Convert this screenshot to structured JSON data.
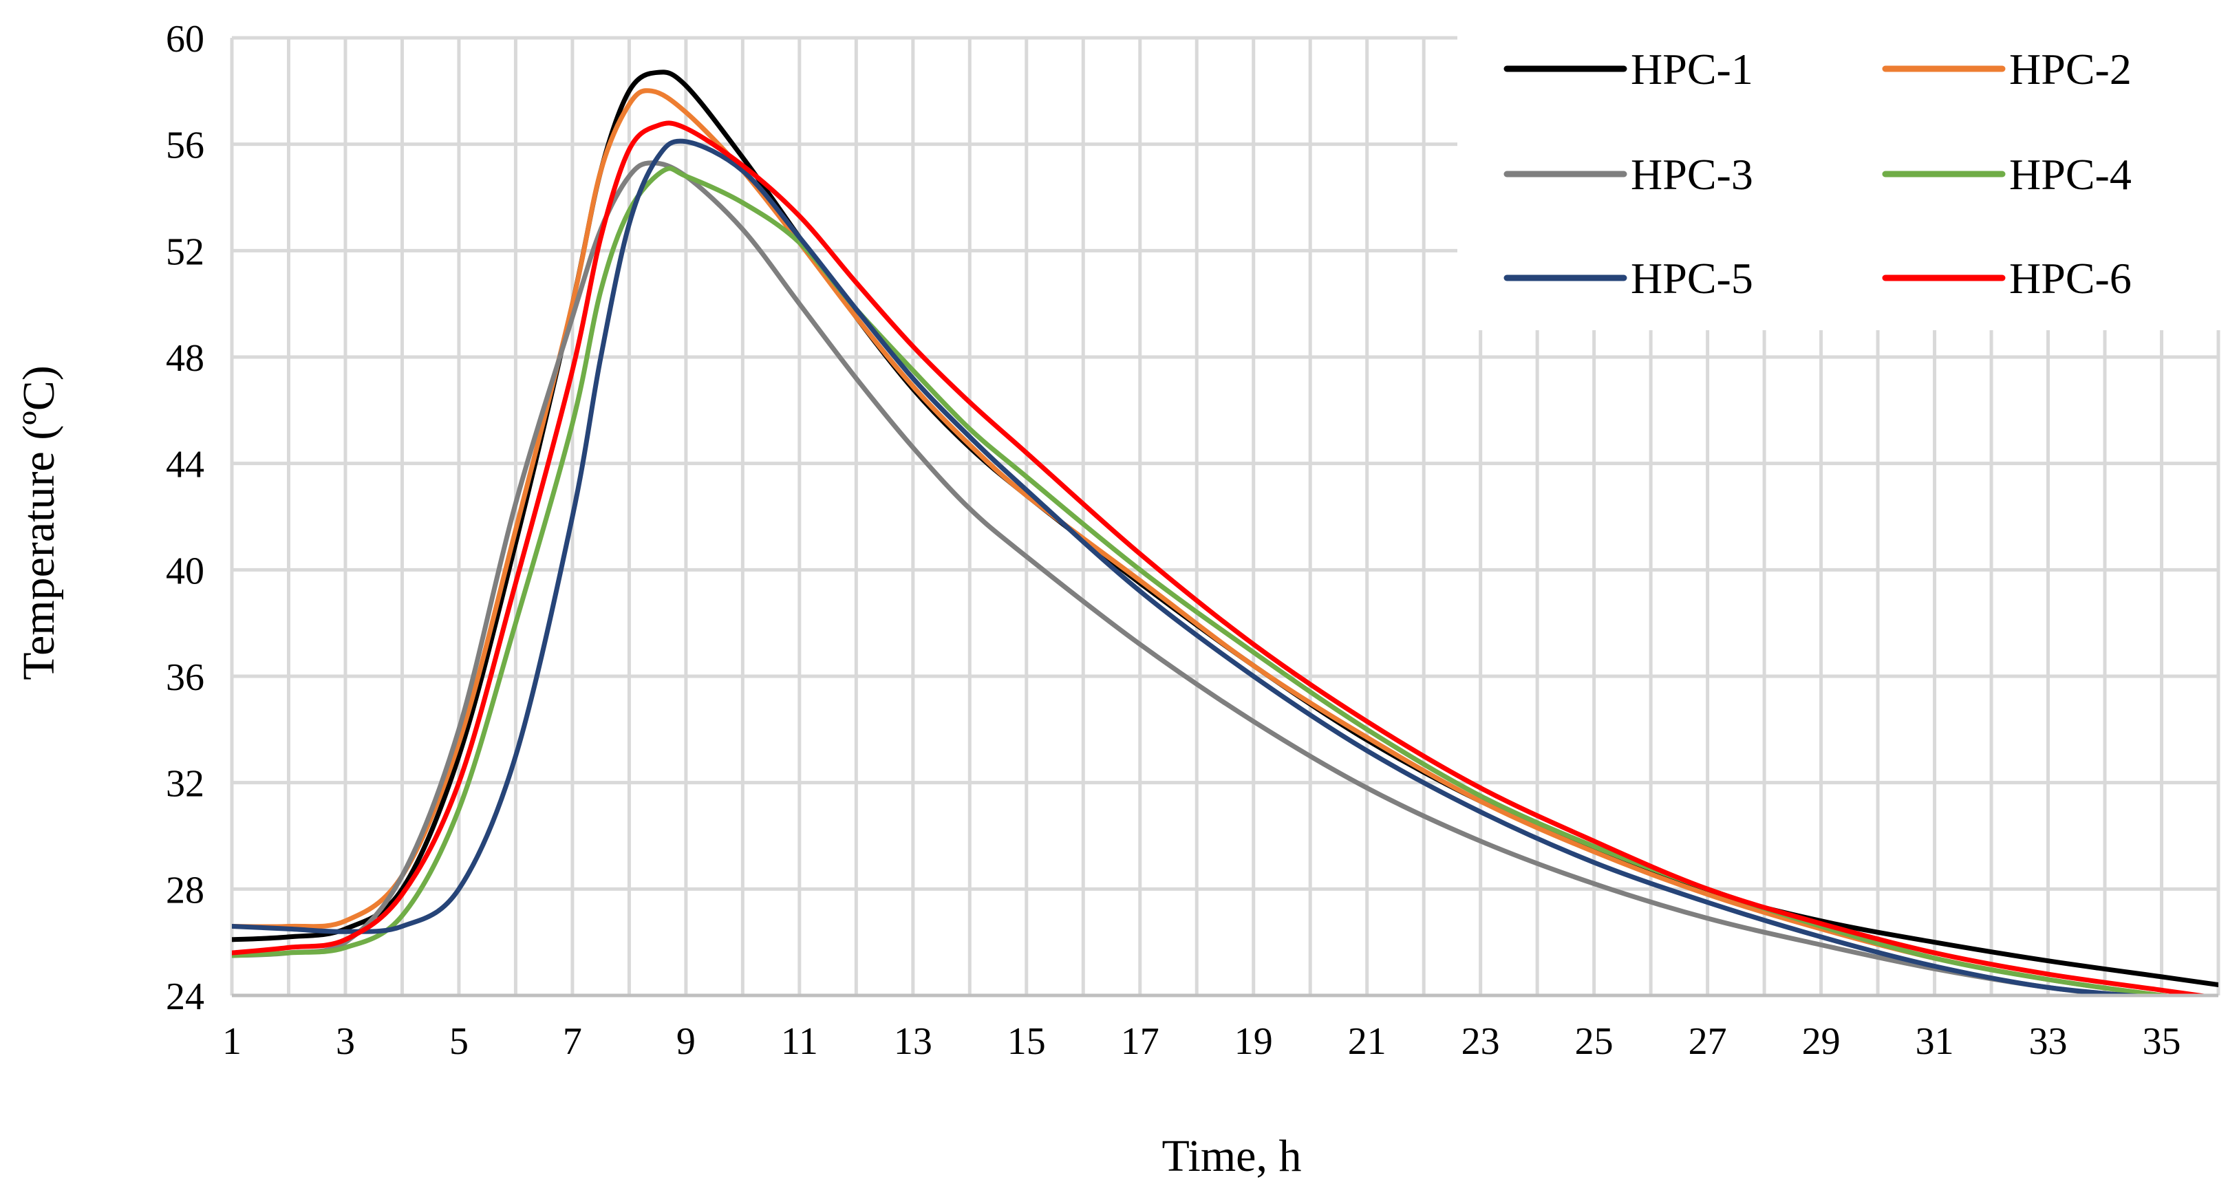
{
  "chart_data": {
    "type": "line",
    "title": "",
    "xlabel": "Time, h",
    "ylabel": "Temperature (ºC)",
    "xlim": [
      1,
      36
    ],
    "ylim": [
      24,
      60
    ],
    "x_tick_labels": [
      "1",
      "3",
      "5",
      "7",
      "9",
      "11",
      "13",
      "15",
      "17",
      "19",
      "21",
      "23",
      "25",
      "27",
      "29",
      "31",
      "33",
      "35"
    ],
    "y_tick_labels": [
      "24",
      "28",
      "32",
      "36",
      "40",
      "44",
      "48",
      "52",
      "56",
      "60"
    ],
    "grid": true,
    "legend_position": "top-right",
    "series": [
      {
        "name": "HPC-1",
        "color": "#000000",
        "points": [
          [
            1,
            26.1
          ],
          [
            2,
            26.2
          ],
          [
            3,
            26.5
          ],
          [
            4,
            28.0
          ],
          [
            5,
            33.0
          ],
          [
            6,
            41.0
          ],
          [
            7,
            50.0
          ],
          [
            7.5,
            55.0
          ],
          [
            8,
            58.0
          ],
          [
            8.5,
            58.7
          ],
          [
            9,
            58.2
          ],
          [
            10,
            55.5
          ],
          [
            11,
            52.5
          ],
          [
            12,
            49.5
          ],
          [
            13,
            46.8
          ],
          [
            14,
            44.6
          ],
          [
            15,
            42.8
          ],
          [
            17,
            39.5
          ],
          [
            19,
            36.4
          ],
          [
            21,
            33.6
          ],
          [
            23,
            31.3
          ],
          [
            25,
            29.5
          ],
          [
            27,
            27.9
          ],
          [
            29,
            26.8
          ],
          [
            31,
            26.0
          ],
          [
            33,
            25.3
          ],
          [
            35,
            24.7
          ],
          [
            36,
            24.4
          ]
        ]
      },
      {
        "name": "HPC-2",
        "color": "#ED7D31",
        "points": [
          [
            1,
            26.6
          ],
          [
            2,
            26.6
          ],
          [
            3,
            26.8
          ],
          [
            4,
            28.5
          ],
          [
            5,
            33.5
          ],
          [
            6,
            41.5
          ],
          [
            7,
            50.0
          ],
          [
            7.5,
            55.0
          ],
          [
            8,
            57.5
          ],
          [
            8.4,
            58.0
          ],
          [
            9,
            57.2
          ],
          [
            10,
            55.0
          ],
          [
            11,
            52.3
          ],
          [
            12,
            49.5
          ],
          [
            13,
            46.9
          ],
          [
            14,
            44.7
          ],
          [
            15,
            42.8
          ],
          [
            17,
            39.6
          ],
          [
            19,
            36.4
          ],
          [
            21,
            33.7
          ],
          [
            23,
            31.3
          ],
          [
            25,
            29.4
          ],
          [
            27,
            27.8
          ],
          [
            29,
            26.5
          ],
          [
            31,
            25.4
          ],
          [
            33,
            24.6
          ],
          [
            35,
            24.0
          ],
          [
            36,
            23.8
          ]
        ]
      },
      {
        "name": "HPC-3",
        "color": "#7F7F7F",
        "points": [
          [
            1,
            25.5
          ],
          [
            2,
            25.6
          ],
          [
            3,
            26.0
          ],
          [
            4,
            28.5
          ],
          [
            5,
            34.0
          ],
          [
            6,
            42.5
          ],
          [
            7,
            49.5
          ],
          [
            7.5,
            52.8
          ],
          [
            8,
            54.8
          ],
          [
            8.4,
            55.3
          ],
          [
            9,
            54.8
          ],
          [
            10,
            52.8
          ],
          [
            11,
            50.0
          ],
          [
            12,
            47.2
          ],
          [
            13,
            44.6
          ],
          [
            14,
            42.3
          ],
          [
            15,
            40.5
          ],
          [
            17,
            37.2
          ],
          [
            19,
            34.3
          ],
          [
            21,
            31.8
          ],
          [
            23,
            29.8
          ],
          [
            25,
            28.2
          ],
          [
            27,
            26.9
          ],
          [
            29,
            25.9
          ],
          [
            31,
            25.0
          ],
          [
            33,
            24.3
          ],
          [
            35,
            23.8
          ],
          [
            36,
            23.6
          ]
        ]
      },
      {
        "name": "HPC-4",
        "color": "#70AD47",
        "points": [
          [
            1,
            25.5
          ],
          [
            2,
            25.6
          ],
          [
            3,
            25.8
          ],
          [
            4,
            27.0
          ],
          [
            5,
            31.0
          ],
          [
            6,
            38.0
          ],
          [
            7,
            45.5
          ],
          [
            7.5,
            50.5
          ],
          [
            8,
            53.5
          ],
          [
            8.6,
            55.0
          ],
          [
            9,
            54.8
          ],
          [
            10,
            53.8
          ],
          [
            11,
            52.3
          ],
          [
            12,
            49.8
          ],
          [
            13,
            47.5
          ],
          [
            14,
            45.3
          ],
          [
            15,
            43.5
          ],
          [
            17,
            40.0
          ],
          [
            19,
            36.9
          ],
          [
            21,
            34.0
          ],
          [
            23,
            31.5
          ],
          [
            25,
            29.6
          ],
          [
            27,
            28.0
          ],
          [
            29,
            26.6
          ],
          [
            31,
            25.4
          ],
          [
            33,
            24.6
          ],
          [
            35,
            24.0
          ],
          [
            36,
            23.8
          ]
        ]
      },
      {
        "name": "HPC-5",
        "color": "#264478",
        "points": [
          [
            1,
            26.6
          ],
          [
            2,
            26.5
          ],
          [
            3,
            26.4
          ],
          [
            4,
            26.6
          ],
          [
            5,
            28.0
          ],
          [
            6,
            33.0
          ],
          [
            7,
            42.0
          ],
          [
            7.5,
            48.0
          ],
          [
            8,
            53.0
          ],
          [
            8.5,
            55.5
          ],
          [
            9,
            56.1
          ],
          [
            10,
            55.0
          ],
          [
            11,
            52.5
          ],
          [
            12,
            49.8
          ],
          [
            13,
            47.2
          ],
          [
            14,
            45.0
          ],
          [
            15,
            43.0
          ],
          [
            17,
            39.2
          ],
          [
            19,
            36.0
          ],
          [
            21,
            33.2
          ],
          [
            23,
            30.9
          ],
          [
            25,
            29.0
          ],
          [
            27,
            27.5
          ],
          [
            29,
            26.2
          ],
          [
            31,
            25.1
          ],
          [
            33,
            24.3
          ],
          [
            35,
            23.9
          ],
          [
            36,
            23.7
          ]
        ]
      },
      {
        "name": "HPC-6",
        "color": "#FF0000",
        "points": [
          [
            1,
            25.6
          ],
          [
            2,
            25.8
          ],
          [
            3,
            26.1
          ],
          [
            4,
            27.8
          ],
          [
            5,
            32.0
          ],
          [
            6,
            39.5
          ],
          [
            7,
            47.5
          ],
          [
            7.5,
            52.5
          ],
          [
            8,
            55.8
          ],
          [
            8.5,
            56.7
          ],
          [
            9,
            56.6
          ],
          [
            10,
            55.2
          ],
          [
            11,
            53.3
          ],
          [
            12,
            50.8
          ],
          [
            13,
            48.4
          ],
          [
            14,
            46.3
          ],
          [
            15,
            44.4
          ],
          [
            17,
            40.6
          ],
          [
            19,
            37.2
          ],
          [
            21,
            34.3
          ],
          [
            23,
            31.8
          ],
          [
            25,
            29.8
          ],
          [
            27,
            28.0
          ],
          [
            29,
            26.7
          ],
          [
            31,
            25.6
          ],
          [
            33,
            24.8
          ],
          [
            35,
            24.2
          ],
          [
            36,
            23.9
          ]
        ]
      }
    ]
  }
}
